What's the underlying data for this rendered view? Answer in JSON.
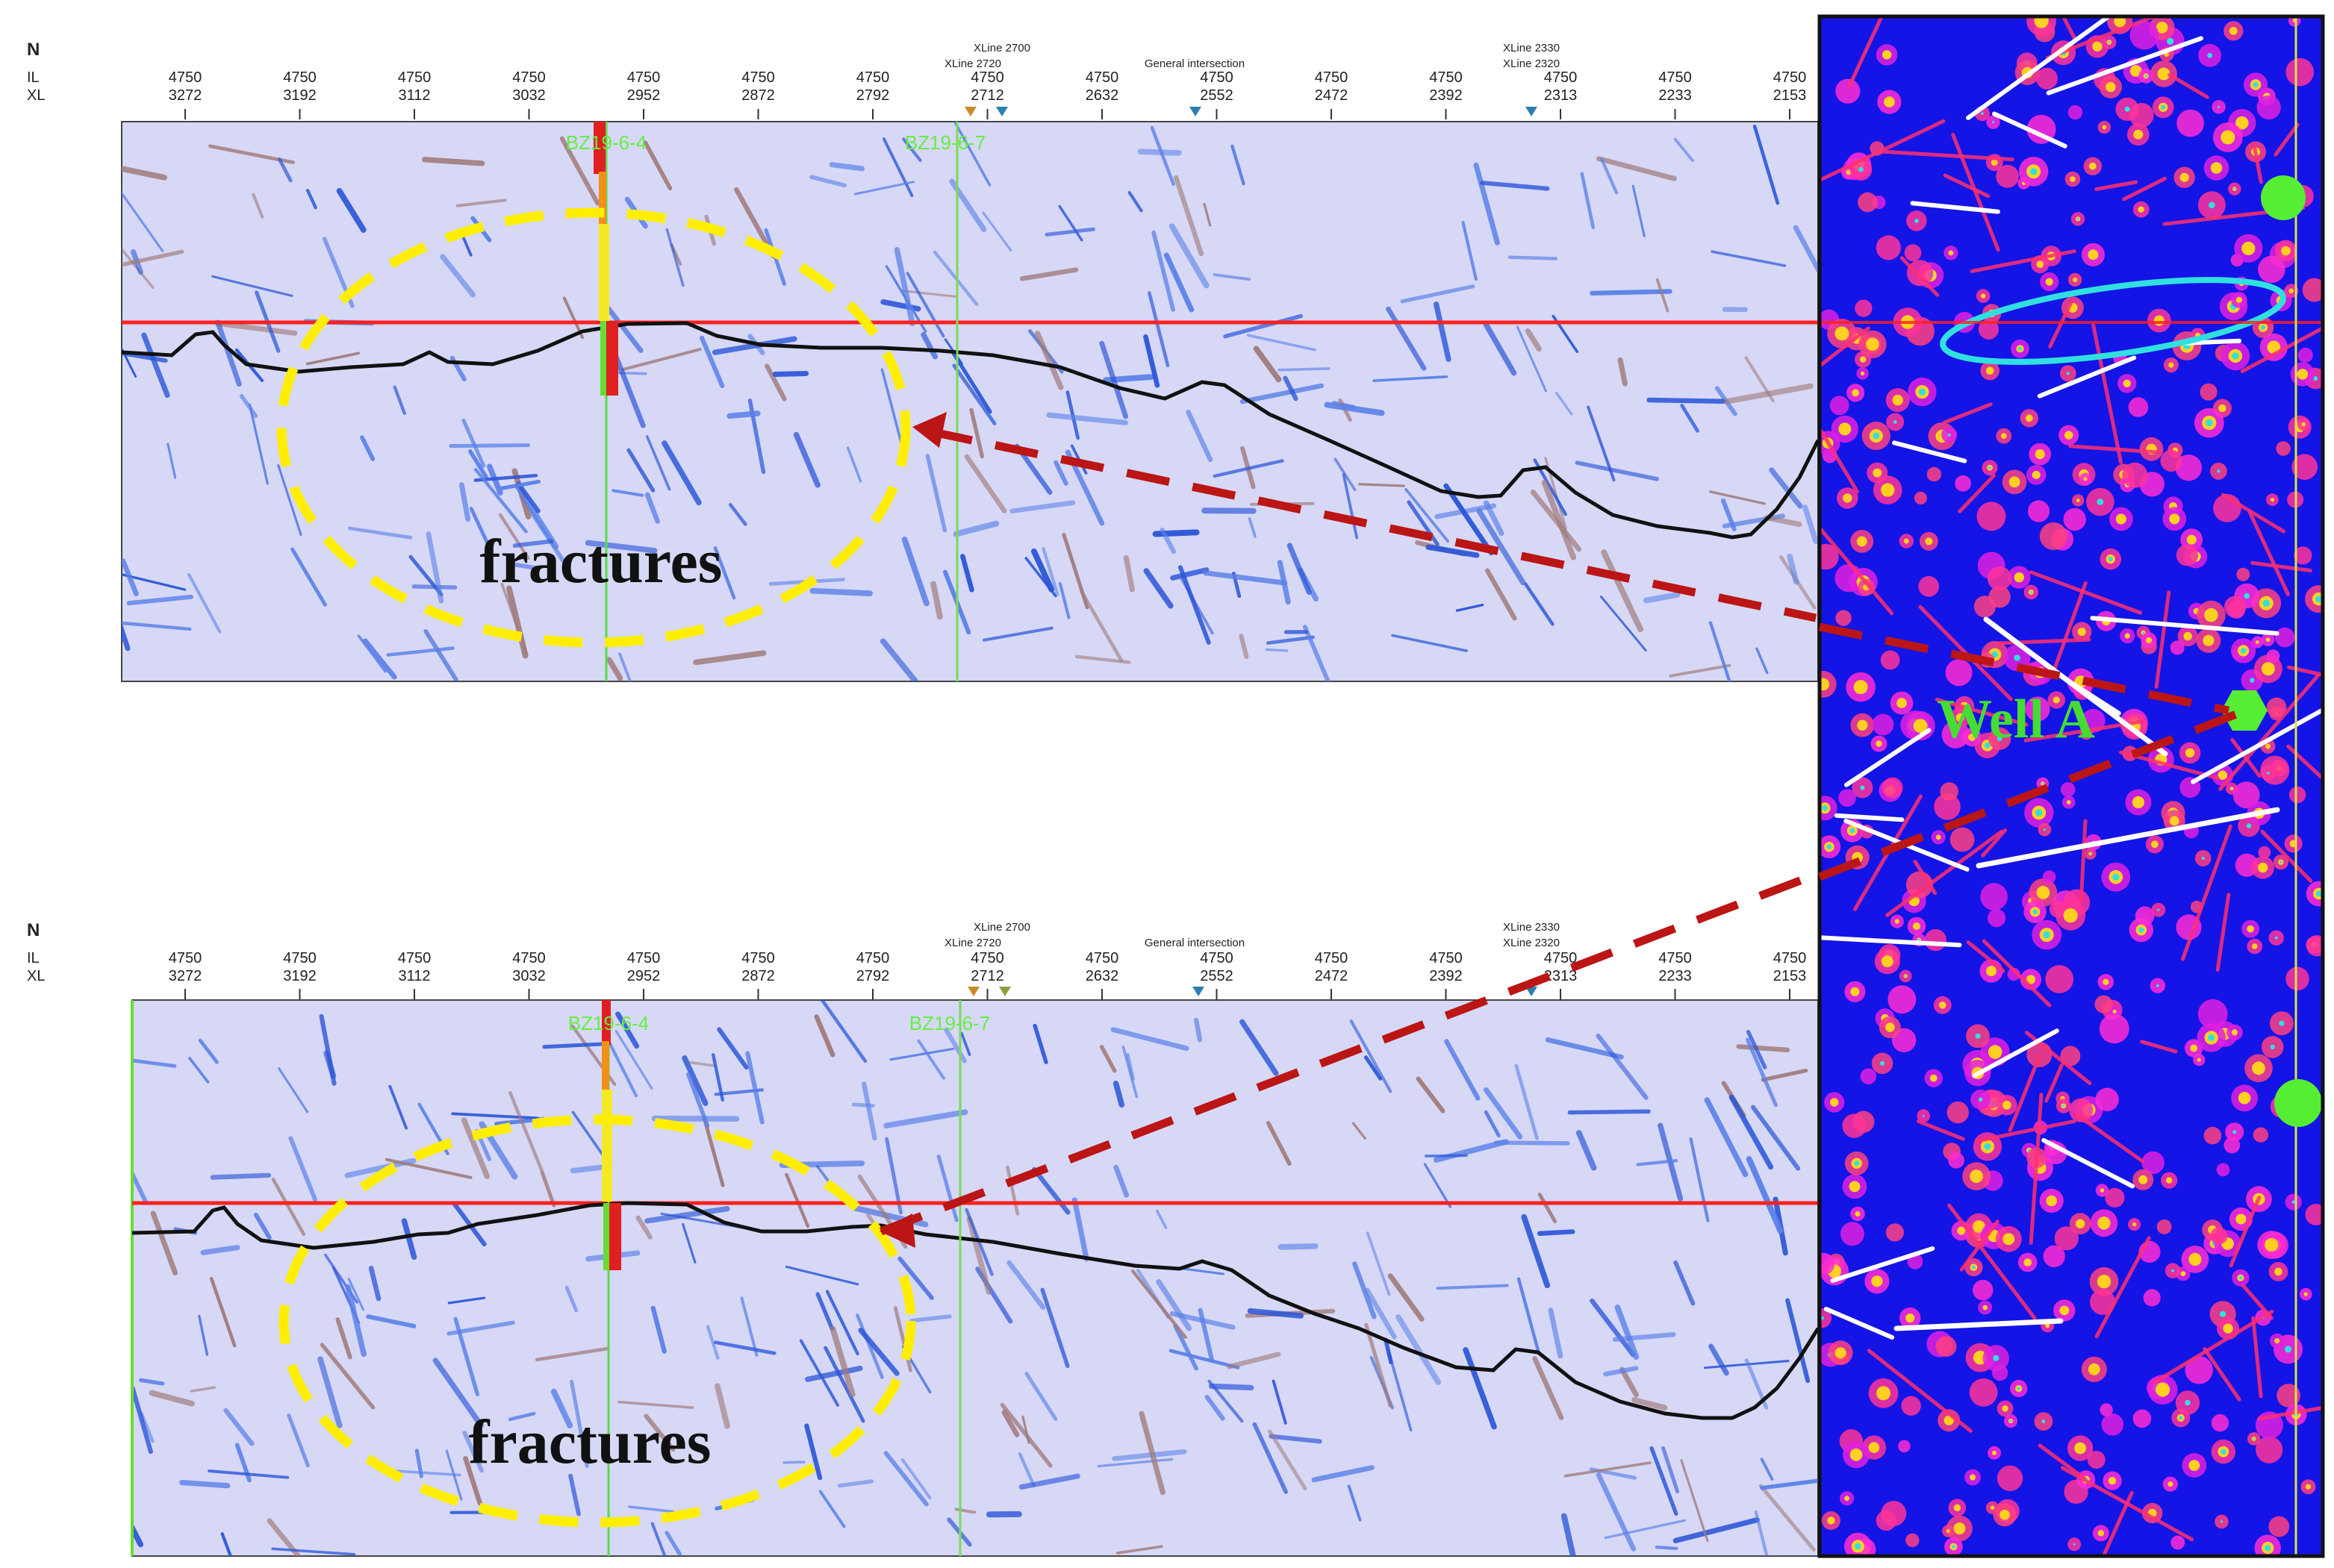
{
  "colors": {
    "section_bg": "#d6d8f6",
    "horizon_red": "#ff2020",
    "horizon_black": "#111111",
    "ellipse_yellow": "#ffee00",
    "arrow_red": "#bb1515",
    "well_green": "#66ee44",
    "map_bg": "#1414e6",
    "map_border": "#111111"
  },
  "top_panel": {
    "north_label": "N",
    "il_label": "IL",
    "xl_label": "XL",
    "il_values": [
      "4750",
      "4750",
      "4750",
      "4750",
      "4750",
      "4750",
      "4750",
      "4750",
      "4750",
      "4750",
      "4750",
      "4750",
      "4750",
      "4750",
      "4750"
    ],
    "xl_values": [
      "3272",
      "3192",
      "3112",
      "3032",
      "2952",
      "2872",
      "2792",
      "2712",
      "2632",
      "2552",
      "2472",
      "2392",
      "2313",
      "2233",
      "2153"
    ],
    "xline_marker_a_line1": "XLine 2700",
    "xline_marker_a_line2": "XLine 2720",
    "general_intersection": "General intersection",
    "xline_marker_b_line1": "XLine 2330",
    "xline_marker_b_line2": "XLine 2320",
    "well_label_1": "BZ19-6-4",
    "well_label_2": "BZ19-6-7",
    "fractures_label": "fractures"
  },
  "bottom_panel": {
    "north_label": "N",
    "il_label": "IL",
    "xl_label": "XL",
    "il_values": [
      "4750",
      "4750",
      "4750",
      "4750",
      "4750",
      "4750",
      "4750",
      "4750",
      "4750",
      "4750",
      "4750",
      "4750",
      "4750",
      "4750",
      "4750"
    ],
    "xl_values": [
      "3272",
      "3192",
      "3112",
      "3032",
      "2952",
      "2872",
      "2792",
      "2712",
      "2632",
      "2552",
      "2472",
      "2392",
      "2313",
      "2233",
      "2153"
    ],
    "xline_marker_a_line1": "XLine 2700",
    "xline_marker_a_line2": "XLine 2720",
    "general_intersection": "General intersection",
    "xline_marker_b_line1": "XLine 2330",
    "xline_marker_b_line2": "XLine 2320",
    "well_label_1": "BZ19-6-4",
    "well_label_2": "BZ19-6-7",
    "fractures_label": "fractures"
  },
  "map_panel": {
    "well_label": "Well A"
  }
}
